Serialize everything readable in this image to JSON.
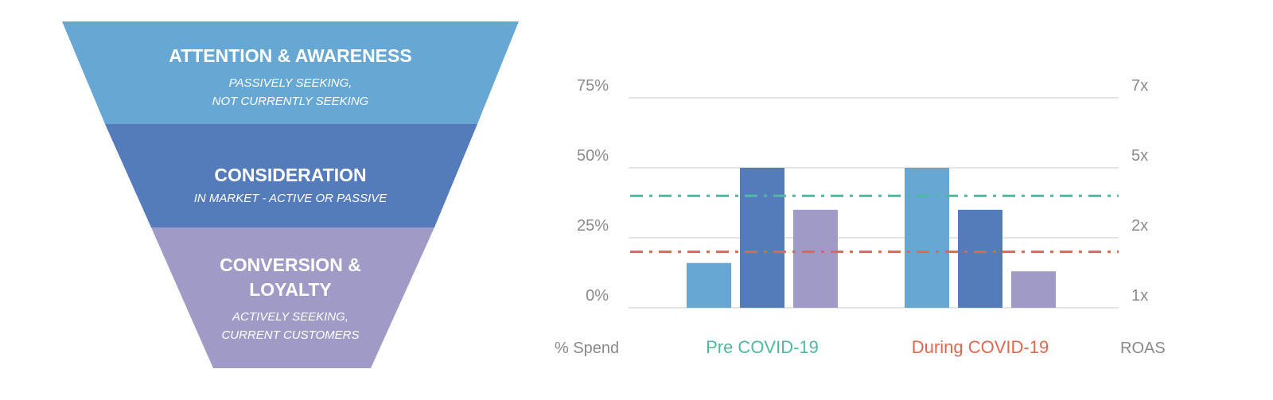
{
  "funnel": {
    "stages": [
      {
        "title_lines": [
          "ATTENTION & AWARENESS"
        ],
        "sub_lines": [
          "PASSIVELY SEEKING,",
          "NOT CURRENTLY SEEKING"
        ],
        "color": "#66a8d3"
      },
      {
        "title_lines": [
          "CONSIDERATION"
        ],
        "sub_lines": [
          "IN MARKET - ACTIVE OR PASSIVE"
        ],
        "color": "#547cba"
      },
      {
        "title_lines": [
          "CONVERSION &",
          "LOYALTY"
        ],
        "sub_lines": [
          "ACTIVELY SEEKING,",
          "CURRENT CUSTOMERS"
        ],
        "color": "#a09bc6"
      }
    ]
  },
  "chart_data": {
    "type": "bar",
    "categories": [
      "Pre COVID-19",
      "During COVID-19"
    ],
    "category_colors": [
      "#4fb9a0",
      "#e0674f"
    ],
    "series": [
      {
        "values": [
          16,
          50
        ],
        "color": "#66a8d3"
      },
      {
        "values": [
          50,
          35
        ],
        "color": "#547cba"
      },
      {
        "values": [
          35,
          13
        ],
        "color": "#a09bc6"
      }
    ],
    "ylabel_left": "% Spend",
    "ylabel_right": "ROAS",
    "ylim": [
      0,
      75
    ],
    "left_ticks": [
      "0%",
      "25%",
      "50%",
      "75%"
    ],
    "right_ticks": [
      "1x",
      "2x",
      "5x",
      "7x"
    ],
    "reference_lines": [
      {
        "value": 40,
        "color": "#4fb9a0",
        "style": "dash-dot"
      },
      {
        "value": 20,
        "color": "#e0674f",
        "style": "dash-dot"
      }
    ],
    "grid": true
  }
}
